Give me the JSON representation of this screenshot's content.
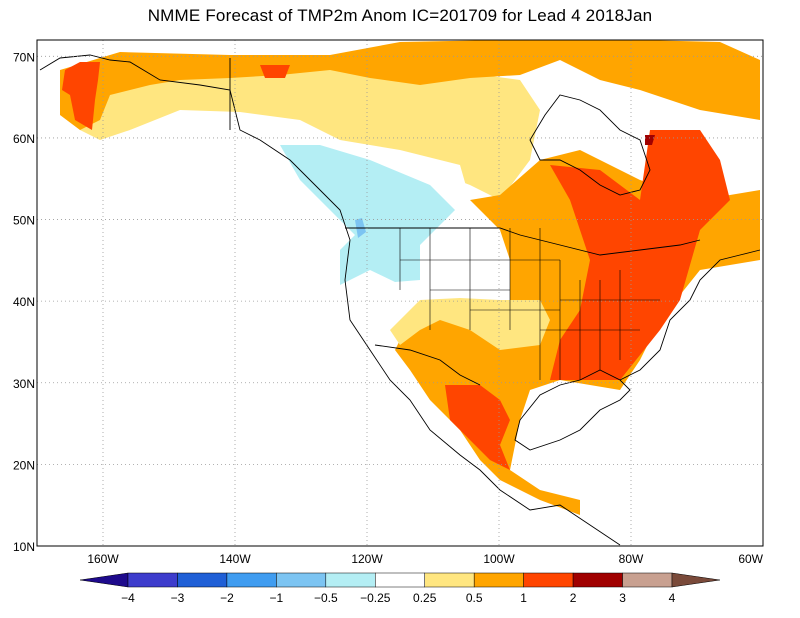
{
  "title": "NMME Forecast of TMP2m Anom  IC=201709 for Lead 4 2018Jan",
  "map": {
    "lon_range": [
      -170,
      -60
    ],
    "lat_range": [
      10,
      72
    ],
    "lat_ticks": [
      {
        "value": 70,
        "label": "70N"
      },
      {
        "value": 60,
        "label": "60N"
      },
      {
        "value": 50,
        "label": "50N"
      },
      {
        "value": 40,
        "label": "40N"
      },
      {
        "value": 30,
        "label": "30N"
      },
      {
        "value": 20,
        "label": "20N"
      },
      {
        "value": 10,
        "label": "10N"
      }
    ],
    "lon_ticks": [
      {
        "value": -160,
        "label": "160W"
      },
      {
        "value": -140,
        "label": "140W"
      },
      {
        "value": -120,
        "label": "120W"
      },
      {
        "value": -100,
        "label": "100W"
      },
      {
        "value": -80,
        "label": "80W"
      },
      {
        "value": -60,
        "label": "60W"
      }
    ],
    "grid": "dotted"
  },
  "colorbar": {
    "colors": [
      "#1e0a8c",
      "#3d3ccc",
      "#1f5fd6",
      "#3f9cf0",
      "#7cc4f2",
      "#b4eef4",
      "#ffffff",
      "#ffe680",
      "#ffa500",
      "#ff4500",
      "#a00000",
      "#c8a090",
      "#7a4a3a"
    ],
    "labels": [
      "−4",
      "−3",
      "−2",
      "−1",
      "−0.5",
      "−0.25",
      "0.25",
      "0.5",
      "1",
      "2",
      "3",
      "4"
    ]
  }
}
